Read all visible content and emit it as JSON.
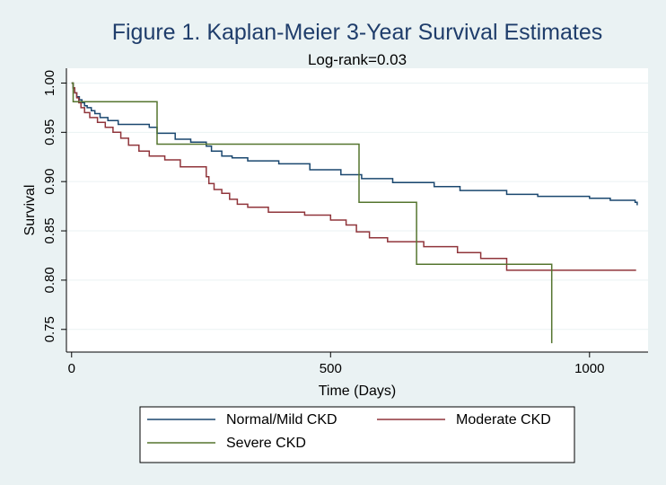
{
  "chart_data": {
    "type": "line",
    "title": "Figure 1. Kaplan-Meier 3-Year Survival Estimates",
    "subtitle": "Log-rank=0.03",
    "xlabel": "Time (Days)",
    "ylabel": "Survival",
    "xlim": [
      -10,
      1113
    ],
    "ylim": [
      0.727,
      1.015
    ],
    "xticks": [
      0,
      500,
      1000
    ],
    "xtick_labels": [
      "0",
      "500",
      "1000"
    ],
    "yticks": [
      0.75,
      0.8,
      0.85,
      0.9,
      0.95,
      1.0
    ],
    "ytick_labels": [
      "0.75",
      "0.80",
      "0.85",
      "0.90",
      "0.95",
      "1.00"
    ],
    "grid": true,
    "legend_position": "bottom",
    "series": [
      {
        "name": "Normal/Mild CKD",
        "color": "#1a476f",
        "step": true,
        "x": [
          0,
          3,
          6,
          10,
          15,
          20,
          25,
          30,
          38,
          45,
          55,
          70,
          90,
          150,
          165,
          200,
          230,
          260,
          270,
          290,
          310,
          340,
          400,
          460,
          520,
          560,
          620,
          700,
          750,
          840,
          900,
          1000,
          1040,
          1088,
          1092
        ],
        "y": [
          1.0,
          0.995,
          0.99,
          0.986,
          0.983,
          0.98,
          0.977,
          0.975,
          0.972,
          0.969,
          0.965,
          0.962,
          0.958,
          0.955,
          0.949,
          0.943,
          0.94,
          0.936,
          0.931,
          0.926,
          0.924,
          0.921,
          0.918,
          0.912,
          0.907,
          0.903,
          0.899,
          0.895,
          0.891,
          0.887,
          0.885,
          0.883,
          0.881,
          0.879,
          0.876
        ]
      },
      {
        "name": "Moderate CKD",
        "color": "#90353b",
        "step": true,
        "x": [
          0,
          3,
          6,
          10,
          14,
          18,
          25,
          35,
          50,
          65,
          80,
          95,
          110,
          130,
          150,
          180,
          210,
          260,
          265,
          275,
          290,
          305,
          320,
          340,
          380,
          450,
          500,
          530,
          550,
          575,
          610,
          680,
          745,
          790,
          840,
          1090
        ],
        "y": [
          1.0,
          0.995,
          0.99,
          0.985,
          0.98,
          0.975,
          0.97,
          0.965,
          0.96,
          0.955,
          0.95,
          0.944,
          0.937,
          0.931,
          0.926,
          0.922,
          0.915,
          0.905,
          0.898,
          0.892,
          0.888,
          0.882,
          0.877,
          0.874,
          0.869,
          0.866,
          0.861,
          0.856,
          0.849,
          0.843,
          0.839,
          0.834,
          0.828,
          0.822,
          0.81,
          0.81
        ]
      },
      {
        "name": "Severe CKD",
        "color": "#55752f",
        "step": true,
        "x": [
          0,
          3,
          165,
          555,
          666,
          927,
          927
        ],
        "y": [
          1.0,
          0.981,
          0.938,
          0.879,
          0.816,
          0.736,
          0.736
        ]
      }
    ]
  }
}
